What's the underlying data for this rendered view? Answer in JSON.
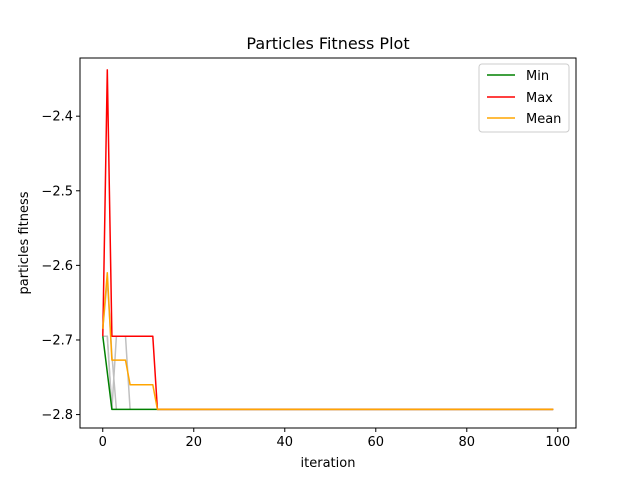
{
  "chart_data": {
    "type": "line",
    "title": "Particles Fitness Plot",
    "xlabel": "iteration",
    "ylabel": "particles fitness",
    "xlim": [
      -5,
      104
    ],
    "ylim": [
      -2.818,
      -2.322
    ],
    "xticks": [
      0,
      20,
      40,
      60,
      80,
      100
    ],
    "yticks": [
      -2.8,
      -2.7,
      -2.6,
      -2.5,
      -2.4
    ],
    "ytick_labels": [
      "−2.8",
      "−2.7",
      "−2.6",
      "−2.5",
      "−2.4"
    ],
    "grid": false,
    "legend_position": "top-right",
    "series": [
      {
        "name": "Min",
        "color": "#008000",
        "points": [
          [
            0,
            -2.695
          ],
          [
            2,
            -2.793
          ],
          [
            99,
            -2.793
          ]
        ]
      },
      {
        "name": "Max",
        "color": "#ff0000",
        "points": [
          [
            0,
            -2.695
          ],
          [
            1,
            -2.338
          ],
          [
            2,
            -2.695
          ],
          [
            11,
            -2.695
          ],
          [
            12,
            -2.793
          ],
          [
            99,
            -2.793
          ]
        ]
      },
      {
        "name": "Mean",
        "color": "#ffa500",
        "points": [
          [
            0,
            -2.685
          ],
          [
            1,
            -2.61
          ],
          [
            2,
            -2.727
          ],
          [
            5,
            -2.727
          ],
          [
            6,
            -2.76
          ],
          [
            11,
            -2.76
          ],
          [
            12,
            -2.793
          ],
          [
            99,
            -2.793
          ]
        ]
      }
    ],
    "background_lines": {
      "color": "#c0c0c0",
      "lines": [
        [
          [
            0,
            -2.695
          ],
          [
            1,
            -2.695
          ],
          [
            2,
            -2.793
          ]
        ],
        [
          [
            1,
            -2.695
          ],
          [
            2,
            -2.793
          ],
          [
            3,
            -2.695
          ],
          [
            5,
            -2.695
          ],
          [
            6,
            -2.793
          ]
        ],
        [
          [
            0,
            -2.685
          ],
          [
            1,
            -2.62
          ],
          [
            2,
            -2.72
          ],
          [
            3,
            -2.793
          ]
        ]
      ]
    }
  }
}
